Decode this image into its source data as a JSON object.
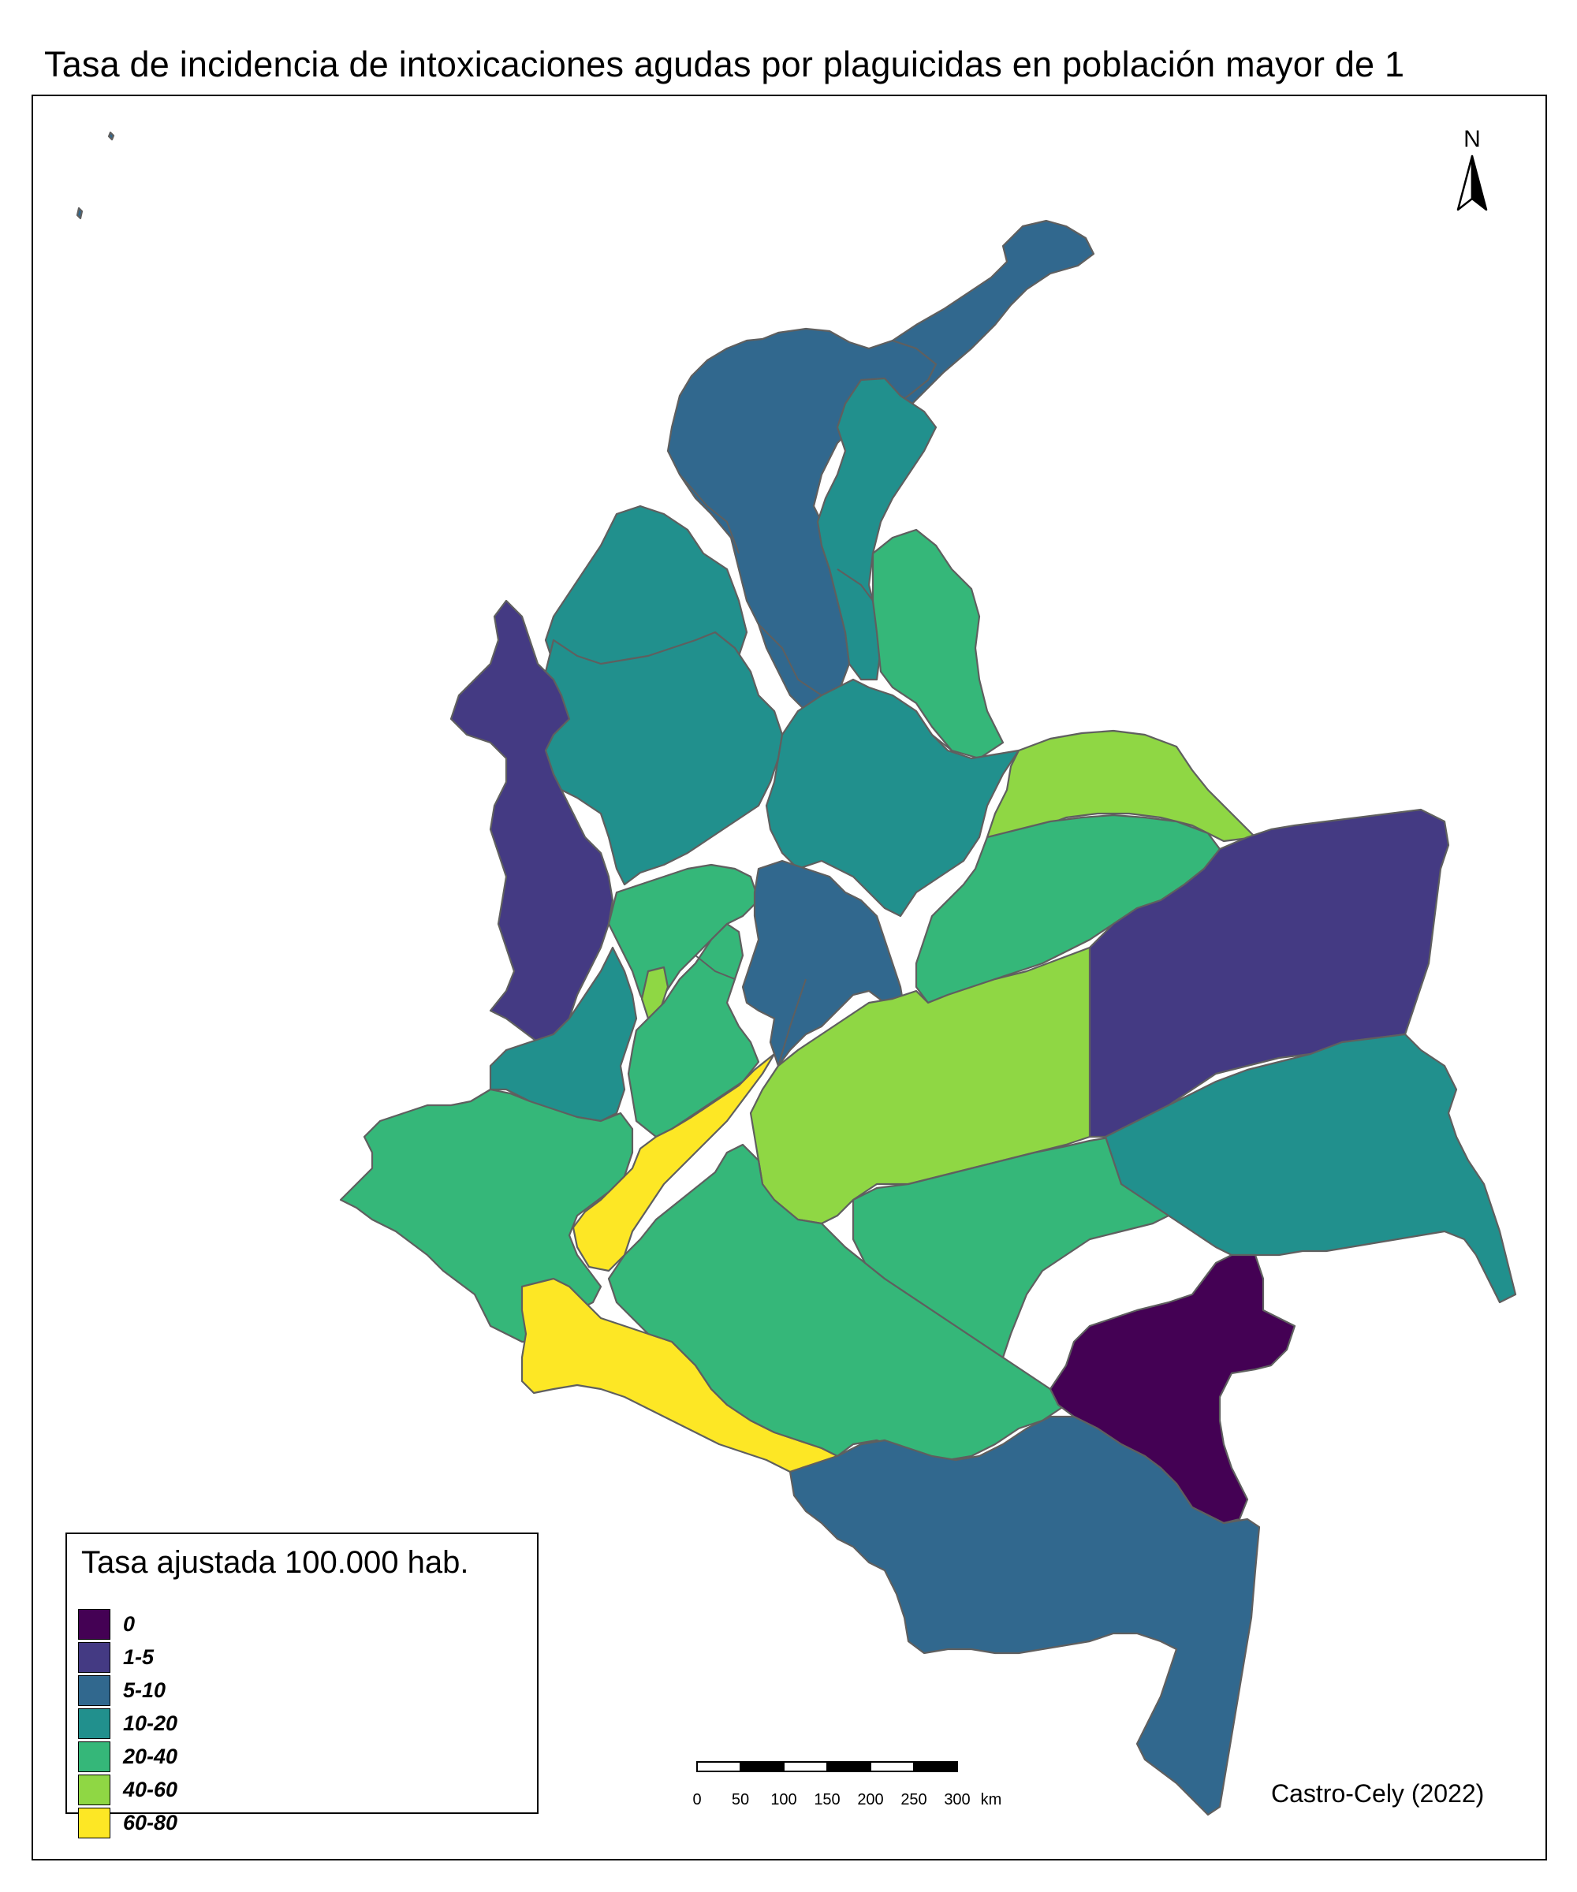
{
  "title": "Tasa de incidencia de intoxicaciones agudas por plaguicidas en población mayor de 1",
  "legend": {
    "title": "Tasa ajustada 100.000 hab.",
    "items": [
      {
        "label": "0",
        "color": "#440154"
      },
      {
        "label": "1-5",
        "color": "#443a83"
      },
      {
        "label": "5-10",
        "color": "#31688e"
      },
      {
        "label": "10-20",
        "color": "#21908d"
      },
      {
        "label": "20-40",
        "color": "#35b779"
      },
      {
        "label": "40-60",
        "color": "#8fd744"
      },
      {
        "label": "60-80",
        "color": "#fde725"
      }
    ]
  },
  "scale_bar": {
    "ticks": [
      "0",
      "50",
      "100",
      "150",
      "200",
      "250",
      "300"
    ],
    "unit": "km"
  },
  "north_arrow": {
    "label": "N"
  },
  "credit": "Castro-Cely (2022)",
  "colors": {
    "border": "#5f5f5f",
    "frame": "#000000",
    "background": "#ffffff"
  }
}
